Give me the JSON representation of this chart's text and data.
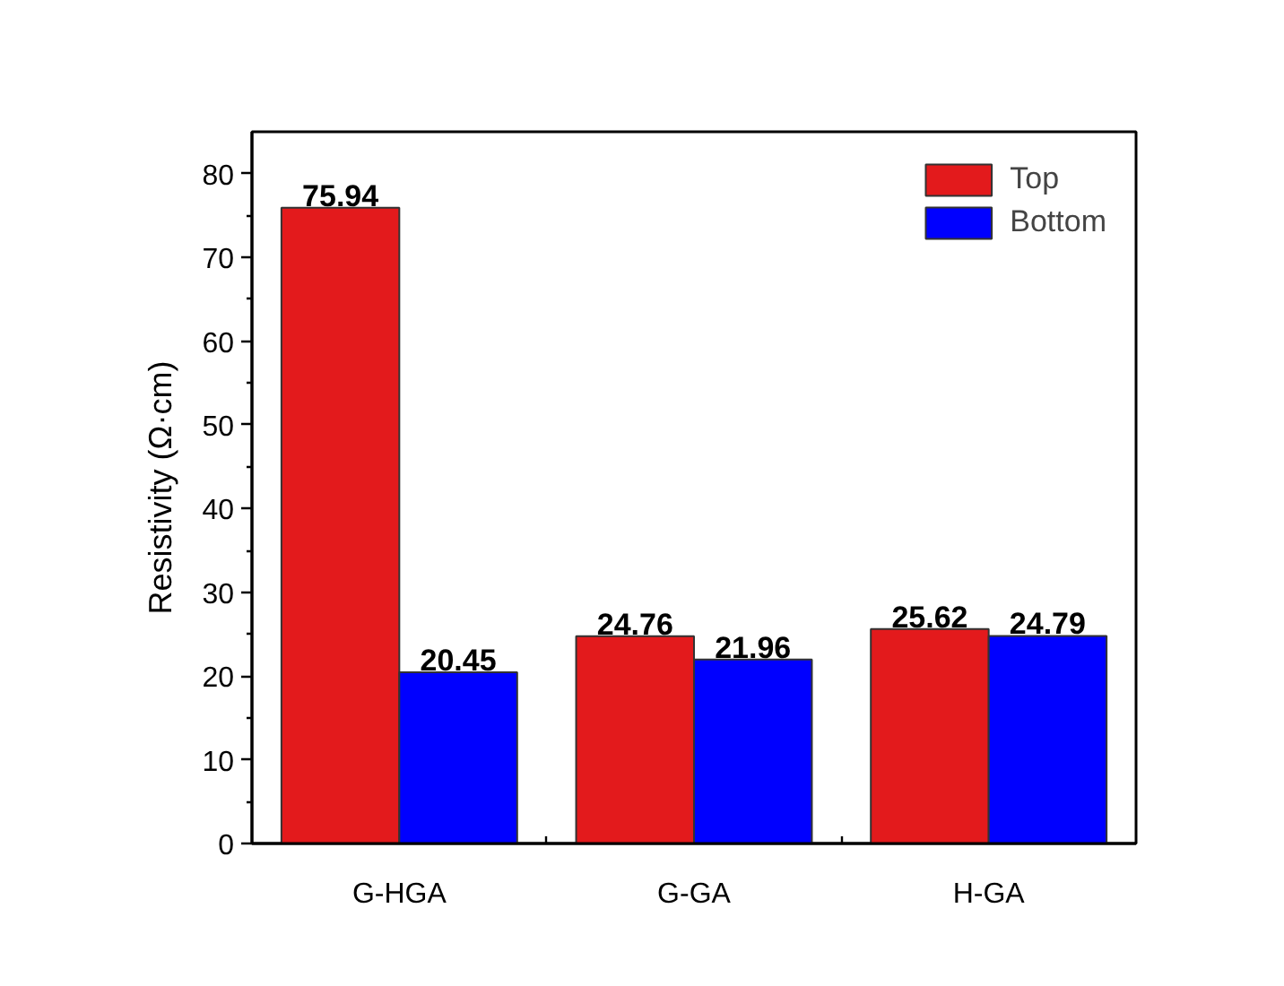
{
  "chart_data": {
    "type": "bar",
    "ylabel": "Resistivity (Ω·cm)",
    "categories": [
      "G-HGA",
      "G-GA",
      "H-GA"
    ],
    "series": [
      {
        "name": "Top",
        "color": "#e31a1c",
        "values": [
          75.94,
          24.76,
          25.62
        ]
      },
      {
        "name": "Bottom",
        "color": "#0000ff",
        "values": [
          20.45,
          21.96,
          24.79
        ]
      }
    ],
    "ylim": [
      0,
      85
    ],
    "yticks": [
      0,
      10,
      20,
      30,
      40,
      50,
      60,
      70,
      80
    ],
    "legend": "top right",
    "data_labels": true
  }
}
